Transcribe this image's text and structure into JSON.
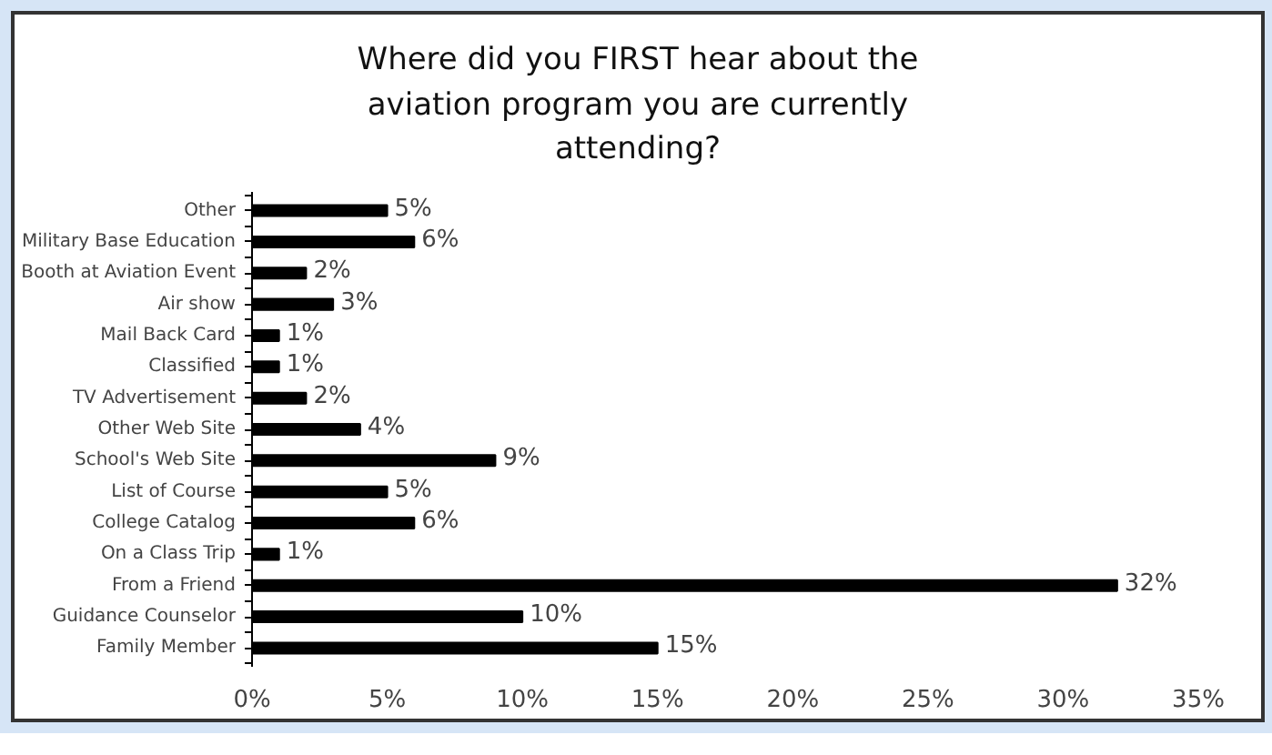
{
  "chart_data": {
    "type": "bar",
    "orientation": "horizontal",
    "title": "Where did you FIRST hear about the aviation program you are currently attending?",
    "categories": [
      "Other",
      "Military Base Education",
      "Booth at Aviation Event",
      "Air show",
      "Mail Back Card",
      "Classified",
      "TV Advertisement",
      "Other Web Site",
      "School's Web Site",
      "List of Course",
      "College Catalog",
      "On a Class Trip",
      "From a Friend",
      "Guidance Counselor",
      "Family Member"
    ],
    "values": [
      5,
      6,
      2,
      3,
      1,
      1,
      2,
      4,
      9,
      5,
      6,
      1,
      32,
      10,
      15
    ],
    "value_labels": [
      "5%",
      "6%",
      "2%",
      "3%",
      "1%",
      "1%",
      "2%",
      "4%",
      "9%",
      "5%",
      "6%",
      "1%",
      "32%",
      "10%",
      "15%"
    ],
    "color": "#000000",
    "xlim": [
      0,
      35
    ],
    "xticks": [
      {
        "value": 0,
        "label": "0%"
      },
      {
        "value": 5,
        "label": "5%"
      },
      {
        "value": 10,
        "label": "10%"
      },
      {
        "value": 15,
        "label": "15%"
      },
      {
        "value": 20,
        "label": "20%"
      },
      {
        "value": 25,
        "label": "25%"
      },
      {
        "value": 30,
        "label": "30%"
      },
      {
        "value": 35,
        "label": "35%"
      }
    ],
    "grid": false
  }
}
